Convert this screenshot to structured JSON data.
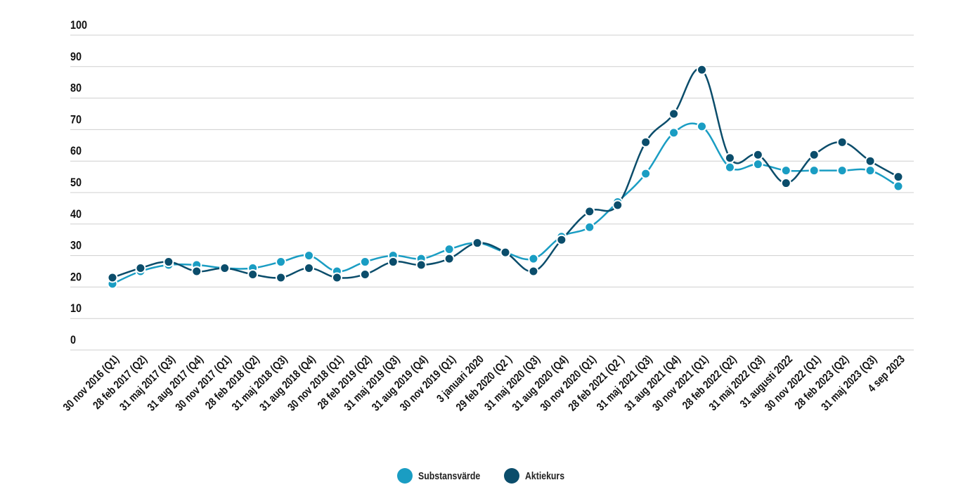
{
  "chart_data": {
    "type": "line",
    "title": "",
    "xlabel": "",
    "ylabel": "",
    "ylim": [
      0,
      100
    ],
    "yticks": [
      0,
      10,
      20,
      30,
      40,
      50,
      60,
      70,
      80,
      90,
      100
    ],
    "grid": true,
    "legend_position": "bottom-center",
    "categories": [
      "30 nov 2016 (Q1)",
      "28 feb 2017 (Q2)",
      "31 maj 2017 (Q3)",
      "31 aug 2017 (Q4)",
      "30 nov 2017 (Q1)",
      "28 feb 2018 (Q2)",
      "31 maj 2018 (Q3)",
      "31 aug 2018 (Q4)",
      "30 nov 2018 (Q1)",
      "28 feb 2019 (Q2)",
      "31 maj 2019 (Q3)",
      "31 aug 2019 (Q4)",
      "30 nov 2019 (Q1)",
      "3 januari 2020",
      "29 feb 2020 (Q2 )",
      "31 maj 2020 (Q3)",
      "31 aug 2020 (Q4)",
      "30 nov 2020 (Q1)",
      "28 feb 2021 (Q2 )",
      "31 maj 2021 (Q3)",
      "31 aug 2021 (Q4)",
      "30 nov 2021 (Q1)",
      "28 feb 2022 (Q2)",
      "31 maj 2022 (Q3)",
      "31 augusti 2022",
      "30 nov 2022 (Q1)",
      "28 feb 2023 (Q2)",
      "31 maj 2023 (Q3)",
      "4 sep 2023"
    ],
    "series": [
      {
        "name": "Substansvärde",
        "color": "#1a9dc3",
        "values": [
          21,
          25,
          27,
          27,
          26,
          26,
          28,
          30,
          25,
          28,
          30,
          29,
          32,
          34,
          31,
          29,
          36,
          39,
          47,
          56,
          69,
          71,
          58,
          59,
          57,
          57,
          57,
          57,
          52
        ]
      },
      {
        "name": "Aktiekurs",
        "color": "#0b4d6b",
        "values": [
          23,
          26,
          28,
          25,
          26,
          24,
          23,
          26,
          23,
          24,
          28,
          27,
          29,
          34,
          31,
          25,
          35,
          44,
          46,
          66,
          75,
          89,
          61,
          62,
          53,
          62,
          66,
          60,
          55
        ]
      }
    ]
  }
}
